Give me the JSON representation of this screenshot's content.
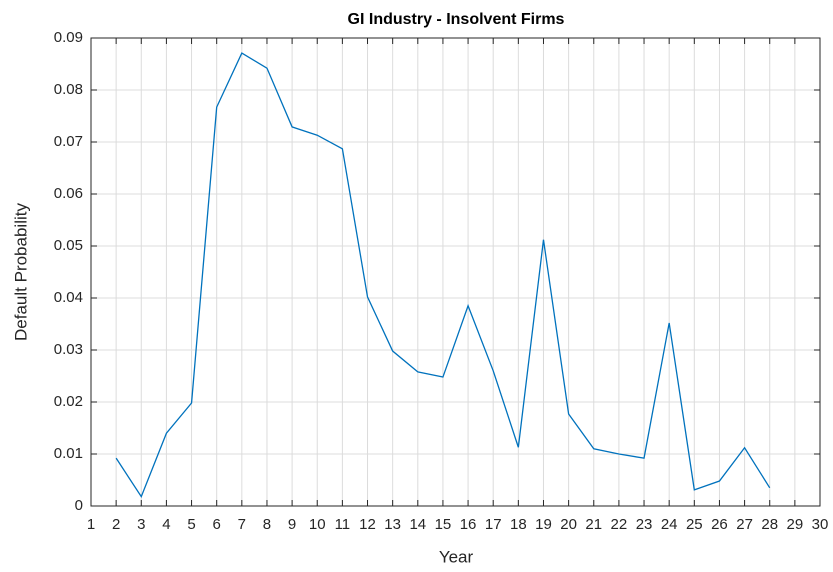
{
  "chart_data": {
    "type": "line",
    "title": "GI Industry - Insolvent Firms",
    "x_label": "Year",
    "y_label": "Default Probability",
    "x": [
      2,
      3,
      4,
      5,
      6,
      7,
      8,
      9,
      10,
      11,
      12,
      13,
      14,
      15,
      16,
      17,
      18,
      19,
      20,
      21,
      22,
      23,
      24,
      25,
      26,
      27,
      28
    ],
    "series": [
      {
        "name": "Default Probability",
        "color": "#0072bd",
        "values": [
          0.0092,
          0.0018,
          0.014,
          0.0198,
          0.0767,
          0.0871,
          0.0842,
          0.0729,
          0.0713,
          0.0687,
          0.0402,
          0.0298,
          0.0258,
          0.0248,
          0.0385,
          0.026,
          0.0113,
          0.0512,
          0.0177,
          0.011,
          0.01,
          0.0092,
          0.0352,
          0.0031,
          0.0048,
          0.0112,
          0.0035
        ]
      }
    ],
    "xlim": [
      1,
      30
    ],
    "xticks": [
      1,
      2,
      3,
      4,
      5,
      6,
      7,
      8,
      9,
      10,
      11,
      12,
      13,
      14,
      15,
      16,
      17,
      18,
      19,
      20,
      21,
      22,
      23,
      24,
      25,
      26,
      27,
      28,
      29,
      30
    ],
    "ylim": [
      0,
      0.09
    ],
    "yticks": [
      0,
      0.01,
      0.02,
      0.03,
      0.04,
      0.05,
      0.06,
      0.07,
      0.08,
      0.09
    ],
    "grid": true
  }
}
